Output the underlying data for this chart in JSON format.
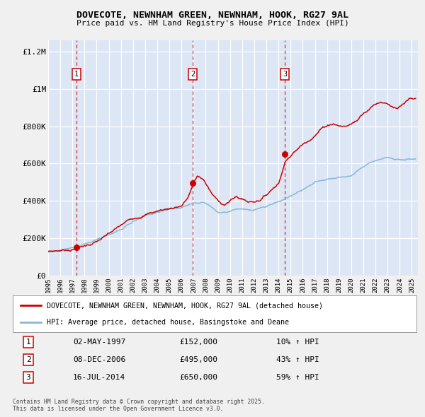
{
  "title": "DOVECOTE, NEWNHAM GREEN, NEWNHAM, HOOK, RG27 9AL",
  "subtitle": "Price paid vs. HM Land Registry's House Price Index (HPI)",
  "legend_red": "DOVECOTE, NEWNHAM GREEN, NEWNHAM, HOOK, RG27 9AL (detached house)",
  "legend_blue": "HPI: Average price, detached house, Basingstoke and Deane",
  "footer": "Contains HM Land Registry data © Crown copyright and database right 2025.\nThis data is licensed under the Open Government Licence v3.0.",
  "transactions": [
    {
      "num": 1,
      "date": "02-MAY-1997",
      "date_x": 1997.33,
      "price": 152000,
      "label": "10% ↑ HPI"
    },
    {
      "num": 2,
      "date": "08-DEC-2006",
      "date_x": 2006.92,
      "price": 495000,
      "label": "43% ↑ HPI"
    },
    {
      "num": 3,
      "date": "16-JUL-2014",
      "date_x": 2014.54,
      "price": 650000,
      "label": "59% ↑ HPI"
    }
  ],
  "ylim": [
    0,
    1260000
  ],
  "xlim_start": 1995.0,
  "xlim_end": 2025.5,
  "yticks": [
    0,
    200000,
    400000,
    600000,
    800000,
    1000000,
    1200000
  ],
  "ytick_labels": [
    "£0",
    "£200K",
    "£400K",
    "£600K",
    "£800K",
    "£1M",
    "£1.2M"
  ],
  "fig_bg": "#f0f0f0",
  "plot_bg": "#dce6f5",
  "grid_color": "#ffffff",
  "red_color": "#cc0000",
  "blue_color": "#89b8d4"
}
